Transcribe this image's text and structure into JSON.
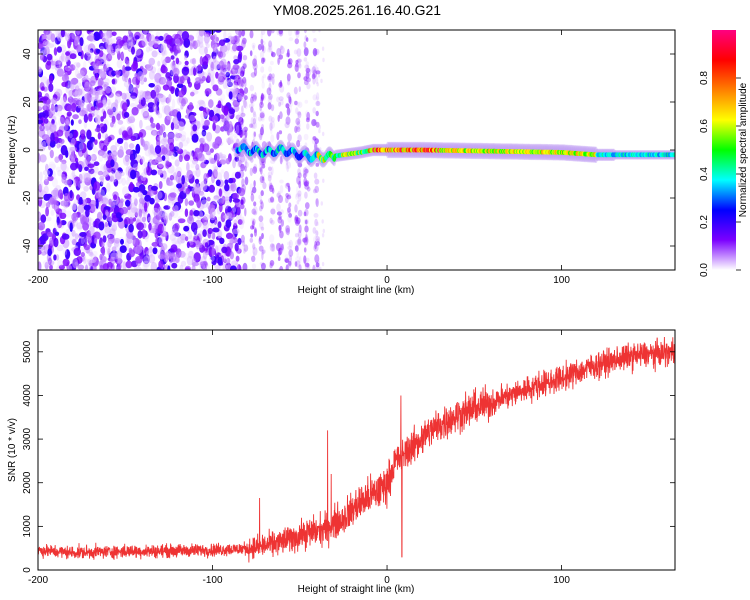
{
  "title": "YM08.2025.261.16.40.G21",
  "chart_data": [
    {
      "type": "heatmap",
      "name": "spectrogram",
      "xlabel": "Height of straight line (km)",
      "ylabel": "Frequency (Hz)",
      "xlim": [
        -200,
        165
      ],
      "ylim": [
        -50,
        50
      ],
      "xticks": [
        -200,
        -100,
        0,
        100
      ],
      "xtick_labels": [
        "-200",
        "-100",
        "0",
        "100"
      ],
      "yticks": [
        -40,
        -20,
        0,
        20,
        40
      ],
      "ytick_labels": [
        "-40",
        "-20",
        "0",
        "20",
        "40"
      ],
      "colorbar": {
        "label": "Normalized spectral amplitude",
        "range": [
          0,
          1
        ],
        "ticks": [
          0.0,
          0.2,
          0.4,
          0.6,
          0.8
        ],
        "tick_labels": [
          "0.0",
          "0.2",
          "0.4",
          "0.6",
          "0.8"
        ],
        "colors": [
          "#ffffff",
          "#7b00ff",
          "#0000ff",
          "#00ffff",
          "#00ff00",
          "#ffff00",
          "#ff8000",
          "#ff0000",
          "#ff0080"
        ]
      },
      "noise_region_x": [
        -200,
        -83
      ],
      "sparse_region_x": [
        -83,
        -37
      ],
      "signal_trace": {
        "x": [
          -86,
          -80,
          -70,
          -60,
          -50,
          -42,
          -35,
          -25,
          -15,
          -8,
          0,
          20,
          60,
          100,
          120,
          165
        ],
        "freq": [
          1,
          0,
          -1,
          0,
          -2,
          -3,
          -3,
          -2,
          -1,
          0,
          0,
          0,
          -0.5,
          -1,
          -2,
          -2
        ]
      }
    },
    {
      "type": "line",
      "name": "snr",
      "xlabel": "Height of straight line (km)",
      "ylabel": "SNR (10 * v/v)",
      "xlim": [
        -200,
        165
      ],
      "ylim": [
        0,
        5500
      ],
      "xticks": [
        -200,
        -100,
        0,
        100
      ],
      "xtick_labels": [
        "-200",
        "-100",
        "0",
        "100"
      ],
      "yticks": [
        0,
        1000,
        2000,
        3000,
        4000,
        5000
      ],
      "ytick_labels": [
        "0",
        "1000",
        "2000",
        "3000",
        "4000",
        "5000"
      ],
      "series": [
        {
          "name": "SNR",
          "color": "#ee3333",
          "x": [
            -200,
            -180,
            -160,
            -140,
            -120,
            -100,
            -85,
            -75,
            -65,
            -55,
            -45,
            -35,
            -25,
            -15,
            -5,
            0,
            5,
            15,
            25,
            40,
            60,
            80,
            100,
            120,
            140,
            165
          ],
          "y": [
            450,
            400,
            420,
            430,
            440,
            460,
            480,
            520,
            600,
            720,
            850,
            950,
            1200,
            1550,
            1800,
            2000,
            2500,
            2850,
            3200,
            3550,
            3850,
            4150,
            4400,
            4700,
            4900,
            5000
          ]
        }
      ],
      "spikes": [
        {
          "x": -73,
          "y": 1650
        },
        {
          "x": -34,
          "y": 3200
        },
        {
          "x": -32,
          "y": 2200
        },
        {
          "x": 8,
          "y": 4000
        },
        {
          "x": 8.5,
          "y": 300
        }
      ]
    }
  ]
}
